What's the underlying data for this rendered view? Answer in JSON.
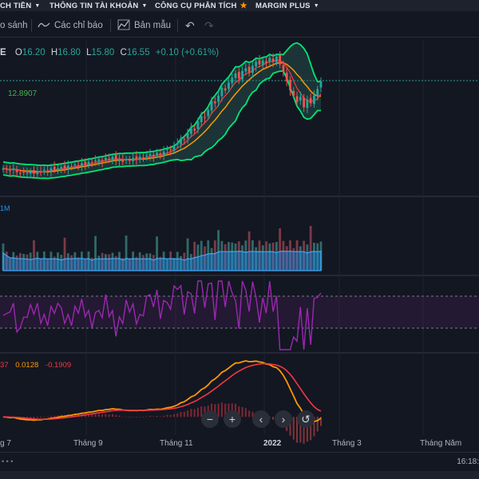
{
  "nav": {
    "items": [
      {
        "label": "CH TIỀN",
        "icon": "caret-down-icon"
      },
      {
        "label": "THÔNG TIN TÀI KHOẢN",
        "icon": "caret-down-icon"
      },
      {
        "label": "CÔNG CỤ PHÂN TÍCH",
        "icon": "star-icon"
      },
      {
        "label": "MARGIN PLUS",
        "icon": "caret-down-icon"
      }
    ]
  },
  "toolbar": {
    "compare": "o sánh",
    "indicators": "Các chỉ báo",
    "templates": "Bản mẫu"
  },
  "legend": {
    "symbol_tail": "E",
    "open_label": "O",
    "open": "16.20",
    "high_label": "H",
    "high": "16.80",
    "low_label": "L",
    "low": "15.80",
    "close_label": "C",
    "close": "16.55",
    "change": "+0.10 (+0.61%)",
    "level": "12.8907",
    "volume_label": "1M",
    "macd_v1": "37",
    "macd_v2": "0.0128",
    "macd_v3": "-0.1909"
  },
  "xaxis": {
    "labels": [
      "g 7",
      "Tháng 9",
      "Tháng 11",
      "2022",
      "Tháng 3",
      "Tháng Năm"
    ]
  },
  "status": {
    "dots": "• • •",
    "time": "16:18:"
  },
  "colors": {
    "up": "#26a69a",
    "down": "#ef5350",
    "bollinger": "#00e676",
    "ma_orange": "#ff9800",
    "ma_red": "#f23645",
    "volume": "#2196f3",
    "rsi": "#9c27b0"
  },
  "chart_data": {
    "type": "candlestick",
    "series": [
      {
        "name": "price",
        "close": [
          13.3,
          13.2,
          13.1,
          13.3,
          13.0,
          12.9,
          13.0,
          12.95,
          13.05,
          12.9,
          13.1,
          13.0,
          13.2,
          13.1,
          13.3,
          13.2,
          13.3,
          13.4,
          13.3,
          13.5,
          13.4,
          13.6,
          13.5,
          13.7,
          13.6,
          13.8,
          13.7,
          13.9,
          14.0,
          13.8,
          14.1,
          14.0,
          14.2,
          13.9,
          14.0,
          13.8,
          14.0,
          13.9,
          14.1,
          14.0,
          14.2,
          14.1,
          14.3,
          14.4,
          14.2,
          14.5,
          14.3,
          14.6,
          14.8,
          14.7,
          15.0,
          15.2,
          15.6,
          15.5,
          16.0,
          16.4,
          16.2,
          16.9,
          17.3,
          17.2,
          17.8,
          18.5,
          18.3,
          18.9,
          19.5,
          19.3,
          19.9,
          20.3,
          20.6,
          20.2,
          20.8,
          21.0,
          20.7,
          21.2,
          21.5,
          21.3,
          21.6,
          21.4,
          21.8,
          21.5,
          21.9,
          21.3,
          20.7,
          20.0,
          19.3,
          18.9,
          18.4,
          18.8,
          18.0,
          18.6,
          18.3,
          18.9,
          19.4,
          20.0
        ]
      }
    ],
    "volume_label": "1M",
    "macd_values": [
      "37",
      "0.0128",
      "-0.1909"
    ]
  }
}
